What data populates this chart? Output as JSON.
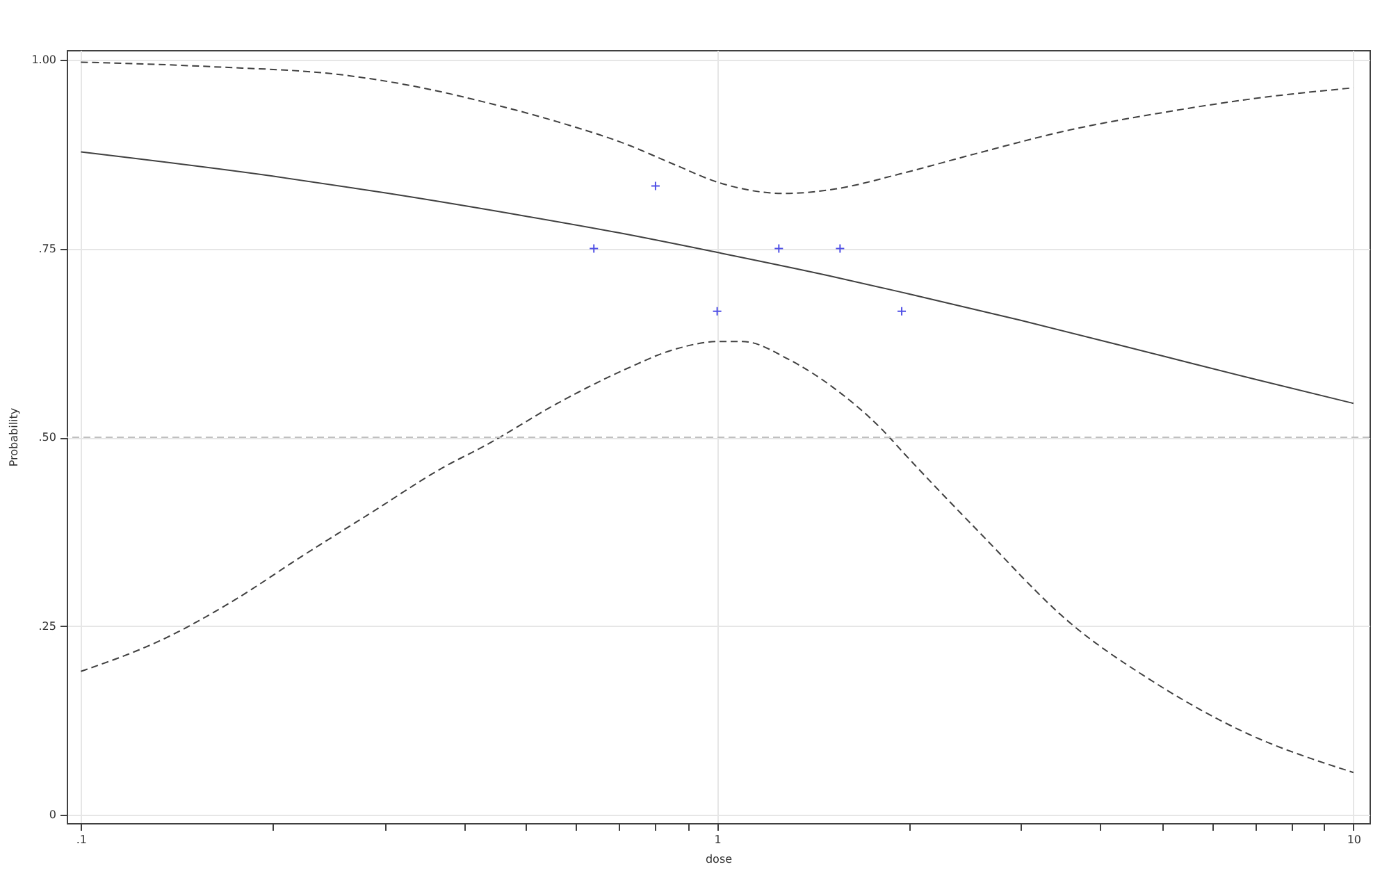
{
  "chart_data": {
    "type": "line",
    "xlabel": "dose",
    "ylabel": "Probability",
    "log": "x",
    "grid": true,
    "xlim": [
      0.095,
      10.6
    ],
    "ylim": [
      -0.011,
      1.013
    ],
    "xticks": [
      {
        "value": 0.1,
        "label": ".1"
      },
      {
        "value": 0.2,
        "label": null
      },
      {
        "value": 0.3,
        "label": null
      },
      {
        "value": 0.4,
        "label": null
      },
      {
        "value": 0.5,
        "label": null
      },
      {
        "value": 0.6,
        "label": null
      },
      {
        "value": 0.7,
        "label": null
      },
      {
        "value": 0.8,
        "label": null
      },
      {
        "value": 0.9,
        "label": null
      },
      1,
      {
        "value": 2,
        "label": null
      },
      {
        "value": 3,
        "label": null
      },
      {
        "value": 4,
        "label": null
      },
      {
        "value": 5,
        "label": null
      },
      {
        "value": 6,
        "label": null
      },
      {
        "value": 7,
        "label": null
      },
      {
        "value": 8,
        "label": null
      },
      {
        "value": 9,
        "label": null
      },
      10
    ],
    "yticks": [
      0,
      {
        "value": 0.25,
        "label": ".25"
      },
      {
        "value": 0.5,
        "label": ".50"
      },
      {
        "value": 0.75,
        "label": ".75"
      },
      {
        "value": 1,
        "label": "1.00"
      }
    ],
    "series": [
      {
        "type": "line",
        "color": "#404040",
        "line_style": "solid",
        "x": [
          0.1,
          0.2,
          0.3,
          0.5,
          0.7,
          1,
          1.5,
          2,
          3,
          5,
          7,
          10
        ],
        "values": [
          0.878,
          0.846,
          0.824,
          0.793,
          0.771,
          0.745,
          0.714,
          0.69,
          0.655,
          0.608,
          0.577,
          0.545
        ]
      },
      {
        "type": "line",
        "color": "#404040",
        "line_style": "dashed",
        "x": [
          0.1,
          0.16,
          0.264,
          0.339,
          0.436,
          0.561,
          0.721,
          0.853,
          1.01,
          1.275,
          1.533,
          1.94,
          2.53,
          3.62,
          4.92,
          7.17,
          10
        ],
        "values": [
          0.997,
          0.991,
          0.979,
          0.964,
          0.943,
          0.918,
          0.888,
          0.862,
          0.837,
          0.823,
          0.829,
          0.849,
          0.875,
          0.908,
          0.929,
          0.95,
          0.963
        ]
      },
      {
        "type": "line",
        "color": "#404040",
        "line_style": "dashed",
        "x": [
          0.1,
          0.135,
          0.174,
          0.223,
          0.287,
          0.369,
          0.436,
          0.561,
          0.721,
          0.853,
          1.01,
          1.096,
          1.297,
          1.533,
          1.813,
          1.97,
          2.57,
          3.6,
          4.79,
          6.6,
          10
        ],
        "values": [
          0.19,
          0.233,
          0.284,
          0.343,
          0.401,
          0.459,
          0.491,
          0.545,
          0.591,
          0.616,
          0.627,
          0.627,
          0.603,
          0.564,
          0.511,
          0.478,
          0.376,
          0.253,
          0.179,
          0.113,
          0.056
        ]
      },
      {
        "type": "scatter",
        "color": "#5050e6",
        "marker": "cross",
        "x": [
          0.64,
          0.8,
          1,
          1.25,
          1.56,
          1.95
        ],
        "values": [
          0.75,
          0.833,
          0.667,
          0.75,
          0.75,
          0.667
        ]
      }
    ],
    "ref_lines": [
      {
        "axis": "y",
        "value": 0.5,
        "color": "#c0c0c0",
        "line_style": "dashed"
      }
    ]
  }
}
